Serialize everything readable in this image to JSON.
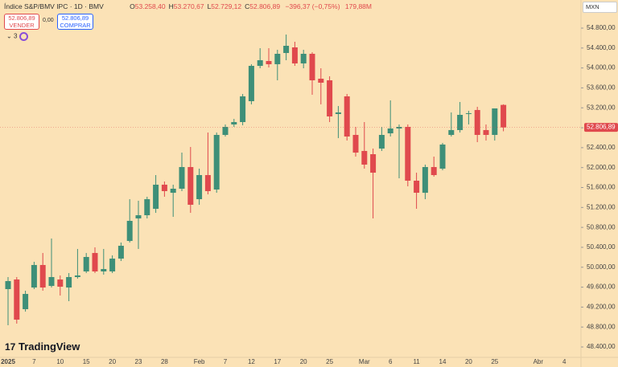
{
  "chart_data": {
    "type": "candlestick",
    "title": "Índice S&P/BMV IPC · 1D · BMV",
    "categories": [
      "2025",
      null,
      null,
      "7",
      null,
      null,
      "10",
      null,
      null,
      "15",
      null,
      null,
      "20",
      null,
      null,
      "23",
      null,
      null,
      "28",
      null,
      null,
      null,
      "Feb",
      null,
      null,
      "7",
      null,
      null,
      "12",
      null,
      null,
      "17",
      null,
      null,
      "20",
      null,
      null,
      "25",
      null,
      null,
      null,
      "Mar",
      null,
      null,
      "6",
      null,
      null,
      "11",
      null,
      null,
      "14",
      null,
      null,
      "20",
      null,
      null,
      "25",
      null,
      null,
      null,
      null,
      "Abr",
      null,
      null,
      "4"
    ],
    "open": [
      49561,
      49754,
      49158,
      49593,
      50045,
      49625,
      49754,
      49593,
      49803,
      49916,
      50286,
      49916,
      49916,
      50173,
      50528,
      50980,
      51044,
      51173,
      51657,
      51495,
      51576,
      52011,
      51366,
      51850,
      51560,
      52656,
      52866,
      52914,
      53333,
      54042,
      54139,
      54075,
      54300,
      54413,
      54091,
      54284,
      53784,
      53752,
      53075,
      53430,
      52656,
      52334,
      52269,
      52382,
      52688,
      52785,
      52817,
      51737,
      51495,
      52011,
      51979,
      52656,
      52753,
      53075,
      53156,
      52753,
      52656,
      53258.4,
      null,
      null,
      null,
      null,
      null,
      null,
      null
    ],
    "high": [
      49803,
      49803,
      49529,
      50109,
      50286,
      50577,
      49835,
      49883,
      50367,
      50286,
      50399,
      50367,
      50238,
      50496,
      51366,
      51334,
      51415,
      51850,
      51721,
      51657,
      52301,
      52414,
      51979,
      52704,
      52704,
      52866,
      52978,
      53478,
      54075,
      54397,
      54397,
      54365,
      54671,
      54526,
      54365,
      54316,
      53994,
      53833,
      53236,
      53478,
      52817,
      52914,
      52382,
      52817,
      53349,
      52866,
      52866,
      51898,
      52060,
      52221,
      52495,
      53107,
      53317,
      53140,
      53220,
      52866,
      53188,
      53270.67,
      null,
      null,
      null,
      null,
      null,
      null,
      null
    ],
    "low": [
      48836,
      48868,
      49110,
      49561,
      49529,
      49593,
      49432,
      49319,
      49771,
      49883,
      49883,
      49851,
      49883,
      50125,
      50496,
      50367,
      50980,
      51092,
      51415,
      51012,
      51528,
      51092,
      51254,
      51463,
      51495,
      52624,
      52817,
      52849,
      53269,
      53994,
      54010,
      53752,
      54155,
      54042,
      53994,
      53462,
      53269,
      52914,
      52592,
      52543,
      52221,
      51979,
      50980,
      52334,
      52624,
      51786,
      51624,
      51173,
      51366,
      51818,
      51947,
      52624,
      52704,
      52866,
      52511,
      52543,
      52543,
      52729.12,
      null,
      null,
      null,
      null,
      null,
      null,
      null
    ],
    "close": [
      49722,
      48948,
      49464,
      50045,
      49593,
      49803,
      49609,
      49803,
      49835,
      50206,
      49916,
      49964,
      50173,
      50431,
      50931,
      51044,
      51366,
      51657,
      51528,
      51576,
      52011,
      51254,
      51850,
      51528,
      52656,
      52817,
      52914,
      53430,
      54042,
      54155,
      54075,
      54284,
      54445,
      54091,
      54284,
      53752,
      53704,
      53027,
      53107,
      52624,
      52301,
      52060,
      51898,
      52656,
      52785,
      52817,
      51737,
      51495,
      52011,
      51850,
      52463,
      52753,
      53059,
      53091,
      52656,
      52656,
      53188,
      52806.89,
      null,
      null,
      null,
      null,
      null,
      null,
      null
    ],
    "up_color": "#3e8f78",
    "down_color": "#e0494d",
    "ylim": [
      48191,
      55364
    ],
    "yticks": [
      {
        "value": 48400,
        "label": "48.400,00"
      },
      {
        "value": 48800,
        "label": "48.800,00"
      },
      {
        "value": 49200,
        "label": "49.200,00"
      },
      {
        "value": 49600,
        "label": "49.600,00"
      },
      {
        "value": 50000,
        "label": "50.000,00"
      },
      {
        "value": 50400,
        "label": "50.400,00"
      },
      {
        "value": 50800,
        "label": "50.800,00"
      },
      {
        "value": 51200,
        "label": "51.200,00"
      },
      {
        "value": 51600,
        "label": "51.600,00"
      },
      {
        "value": 52000,
        "label": "52.000,00"
      },
      {
        "value": 52400,
        "label": "52.400,00"
      },
      {
        "value": 52800,
        "label": "52.800,00"
      },
      {
        "value": 53200,
        "label": "53.200,00"
      },
      {
        "value": 53600,
        "label": "53.600,00"
      },
      {
        "value": 54000,
        "label": "54.000,00"
      },
      {
        "value": 54400,
        "label": "54.400,00"
      },
      {
        "value": 54800,
        "label": "54.800,00"
      }
    ],
    "last_price_label": "52.806,89",
    "ohlc": [
      {
        "key": "O",
        "value": "53.258,40"
      },
      {
        "key": "H",
        "value": "53.270,67"
      },
      {
        "key": "L",
        "value": "52.729,12"
      },
      {
        "key": "C",
        "value": "52.806,89"
      }
    ],
    "change": "−396,37 (−0,75%)",
    "volume": "179,88M"
  },
  "toolbar": {
    "sell_price": "52.806,89",
    "sell_label": "VENDER",
    "spread": "0,00",
    "buy_price": "52.806,89",
    "buy_label": "COMPRAR",
    "indicators": "3",
    "currency": "MXN",
    "logo": "TradingView"
  }
}
